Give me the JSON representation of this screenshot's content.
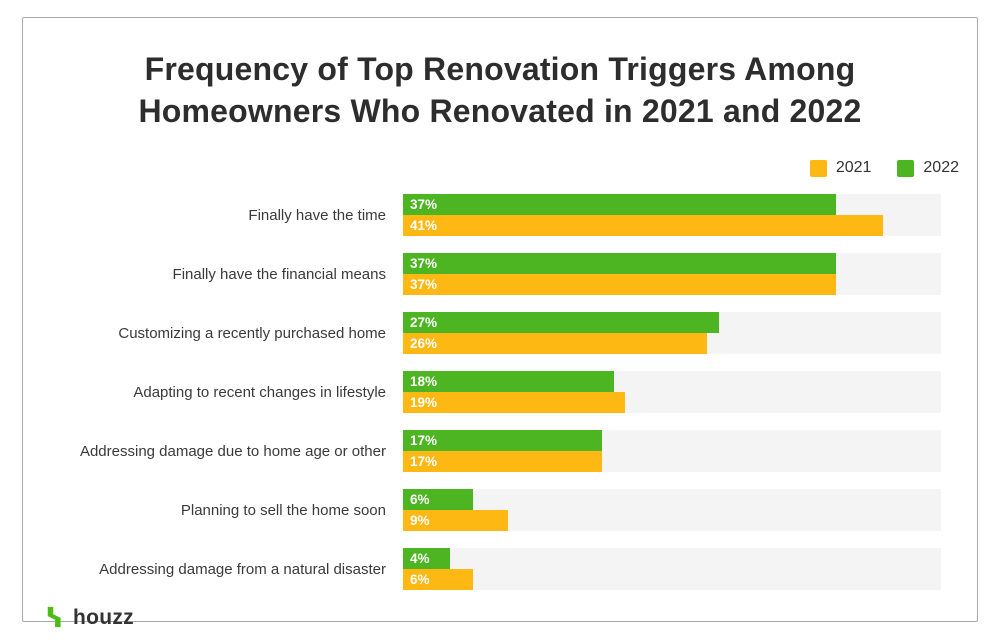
{
  "title_line1": "Frequency of Top Renovation Triggers Among",
  "title_line2": "Homeowners Who Renovated in 2021 and 2022",
  "legend": {
    "items": [
      {
        "label": "2021",
        "color": "#FDB813"
      },
      {
        "label": "2022",
        "color": "#4CB521"
      }
    ]
  },
  "logo": {
    "text": "houzz",
    "icon_color": "#4DBC15"
  },
  "colors": {
    "green_2022": "#4CB521",
    "orange_2021": "#FDB813",
    "row_band": "#f4f4f4",
    "title_text": "#2d2d2d"
  },
  "chart_data": {
    "type": "bar",
    "orientation": "horizontal",
    "title": "Frequency of Top Renovation Triggers Among Homeowners Who Renovated in 2021 and 2022",
    "categories": [
      "Finally have the time",
      "Finally have the financial means",
      "Customizing a recently purchased home",
      "Adapting to recent changes in lifestyle",
      "Addressing damage due to home age or other",
      "Planning to sell the home soon",
      "Addressing damage from a natural disaster"
    ],
    "series": [
      {
        "name": "2022",
        "color": "#4CB521",
        "values": [
          37,
          37,
          27,
          18,
          17,
          6,
          4
        ]
      },
      {
        "name": "2021",
        "color": "#FDB813",
        "values": [
          41,
          37,
          26,
          19,
          17,
          9,
          6
        ]
      }
    ],
    "bar_order_top_to_bottom": [
      "2022",
      "2021"
    ],
    "value_suffix": "%",
    "xlabel": "",
    "ylabel": "",
    "xlim": [
      0,
      46
    ],
    "grid": false,
    "legend_position": "top-right"
  }
}
